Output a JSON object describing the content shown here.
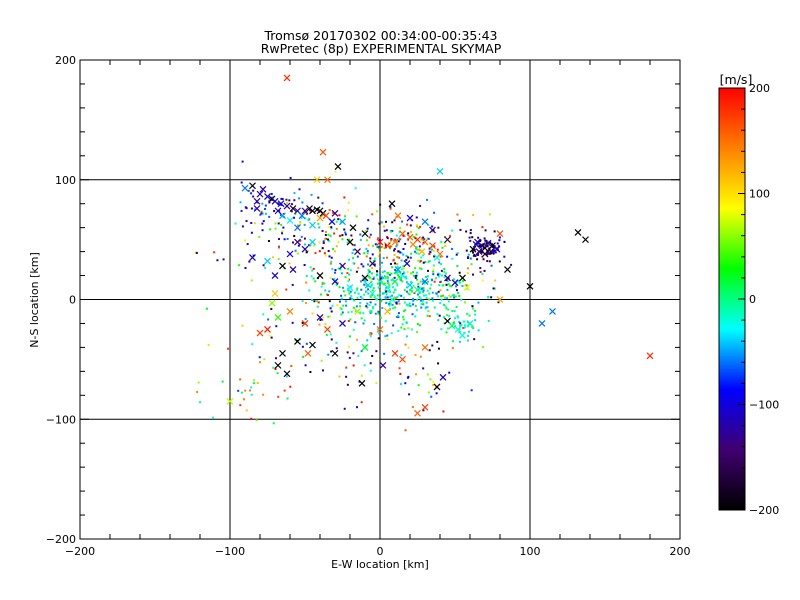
{
  "chart_data": {
    "type": "scatter",
    "title": "Tromsø 20170302 00:34:00-00:35:43",
    "subtitle": "RwPretec (8p) EXPERIMENTAL SKYMAP",
    "xlabel": "E-W location [km]",
    "ylabel": "N-S location [km]",
    "xlim": [
      -200,
      200
    ],
    "ylim": [
      -200,
      200
    ],
    "x_ticks": [
      -200,
      -100,
      0,
      100,
      200
    ],
    "y_ticks": [
      -200,
      -100,
      0,
      100,
      200
    ],
    "x_tick_labels": [
      "−200",
      "−100",
      "0",
      "100",
      "200"
    ],
    "y_tick_labels": [
      "−200",
      "−100",
      "0",
      "100",
      "200"
    ],
    "grid_lines_at": [
      -100,
      0,
      100
    ],
    "colorbar": {
      "unit": "[m/s]",
      "range": [
        -200,
        200
      ],
      "ticks": [
        -200,
        -100,
        0,
        100,
        200
      ],
      "tick_labels": [
        "−200",
        "−100",
        "0",
        "100",
        "200"
      ],
      "colormap": [
        "#000000",
        "#400070",
        "#0000ff",
        "#00ffff",
        "#00ff00",
        "#ffff00",
        "#ff8000",
        "#ff0000"
      ]
    },
    "points": [
      {
        "x": -62,
        "y": 185,
        "v": 180,
        "m": "x"
      },
      {
        "x": -38,
        "y": 123,
        "v": 160,
        "m": "x"
      },
      {
        "x": -28,
        "y": 111,
        "v": -200,
        "m": "x"
      },
      {
        "x": -35,
        "y": 100,
        "v": 150,
        "m": "x"
      },
      {
        "x": -42,
        "y": 100,
        "v": 110,
        "m": "x"
      },
      {
        "x": 40,
        "y": 107,
        "v": -40,
        "m": "x"
      },
      {
        "x": -85,
        "y": 95,
        "v": -190,
        "m": "x"
      },
      {
        "x": -90,
        "y": 93,
        "v": -60,
        "m": "x"
      },
      {
        "x": -78,
        "y": 92,
        "v": -120,
        "m": "x"
      },
      {
        "x": -80,
        "y": 88,
        "v": -120,
        "m": "x"
      },
      {
        "x": -75,
        "y": 86,
        "v": -110,
        "m": "x"
      },
      {
        "x": -72,
        "y": 84,
        "v": -190,
        "m": "x"
      },
      {
        "x": -70,
        "y": 82,
        "v": -120,
        "m": "x"
      },
      {
        "x": -82,
        "y": 82,
        "v": -130,
        "m": "x"
      },
      {
        "x": -66,
        "y": 80,
        "v": -100,
        "m": "x"
      },
      {
        "x": -62,
        "y": 78,
        "v": -130,
        "m": "x"
      },
      {
        "x": -58,
        "y": 76,
        "v": -190,
        "m": "x"
      },
      {
        "x": -55,
        "y": 74,
        "v": -120,
        "m": "x"
      },
      {
        "x": -50,
        "y": 74,
        "v": -140,
        "m": "x"
      },
      {
        "x": -47,
        "y": 76,
        "v": -190,
        "m": "x"
      },
      {
        "x": -45,
        "y": 74,
        "v": -200,
        "m": "x"
      },
      {
        "x": -42,
        "y": 75,
        "v": -190,
        "m": "x"
      },
      {
        "x": -40,
        "y": 74,
        "v": -200,
        "m": "x"
      },
      {
        "x": -38,
        "y": 72,
        "v": -200,
        "m": "x"
      },
      {
        "x": -36,
        "y": 70,
        "v": 170,
        "m": "x"
      },
      {
        "x": -40,
        "y": 68,
        "v": 130,
        "m": "x"
      },
      {
        "x": -30,
        "y": 72,
        "v": -130,
        "m": "x"
      },
      {
        "x": -25,
        "y": 65,
        "v": -50,
        "m": "x"
      },
      {
        "x": -32,
        "y": 65,
        "v": -90,
        "m": "x"
      },
      {
        "x": -45,
        "y": 62,
        "v": -40,
        "m": "x"
      },
      {
        "x": -52,
        "y": 70,
        "v": -60,
        "m": "x"
      },
      {
        "x": -60,
        "y": 66,
        "v": -30,
        "m": "x"
      },
      {
        "x": -65,
        "y": 70,
        "v": -50,
        "m": "x"
      },
      {
        "x": -68,
        "y": 74,
        "v": -120,
        "m": "x"
      },
      {
        "x": -82,
        "y": 76,
        "v": -120,
        "m": "x"
      },
      {
        "x": -55,
        "y": 60,
        "v": -60,
        "m": "x"
      },
      {
        "x": -18,
        "y": 60,
        "v": -200,
        "m": "x"
      },
      {
        "x": -10,
        "y": 55,
        "v": -200,
        "m": "x"
      },
      {
        "x": -20,
        "y": 48,
        "v": -200,
        "m": "x"
      },
      {
        "x": -15,
        "y": 40,
        "v": -150,
        "m": "x"
      },
      {
        "x": -5,
        "y": 30,
        "v": -160,
        "m": "x"
      },
      {
        "x": 8,
        "y": 80,
        "v": -200,
        "m": "x"
      },
      {
        "x": 12,
        "y": 70,
        "v": 150,
        "m": "x"
      },
      {
        "x": 20,
        "y": 68,
        "v": -100,
        "m": "x"
      },
      {
        "x": 15,
        "y": 55,
        "v": 160,
        "m": "x"
      },
      {
        "x": 20,
        "y": 52,
        "v": 160,
        "m": "x"
      },
      {
        "x": 25,
        "y": 50,
        "v": 180,
        "m": "x"
      },
      {
        "x": 30,
        "y": 48,
        "v": 150,
        "m": "x"
      },
      {
        "x": 35,
        "y": 45,
        "v": 170,
        "m": "x"
      },
      {
        "x": 22,
        "y": 46,
        "v": 140,
        "m": "x"
      },
      {
        "x": 10,
        "y": 48,
        "v": 140,
        "m": "x"
      },
      {
        "x": 5,
        "y": 45,
        "v": 180,
        "m": "x"
      },
      {
        "x": 0,
        "y": 48,
        "v": 190,
        "m": "x"
      },
      {
        "x": 28,
        "y": 40,
        "v": 120,
        "m": "x"
      },
      {
        "x": 40,
        "y": 38,
        "v": 150,
        "m": "x"
      },
      {
        "x": 45,
        "y": 50,
        "v": -150,
        "m": "x"
      },
      {
        "x": 30,
        "y": 65,
        "v": -60,
        "m": "x"
      },
      {
        "x": 35,
        "y": 58,
        "v": -120,
        "m": "x"
      },
      {
        "x": 38,
        "y": 35,
        "v": -20,
        "m": "x"
      },
      {
        "x": 65,
        "y": 48,
        "v": -110,
        "m": "x"
      },
      {
        "x": 68,
        "y": 45,
        "v": -130,
        "m": "x"
      },
      {
        "x": 70,
        "y": 43,
        "v": -190,
        "m": "x"
      },
      {
        "x": 72,
        "y": 47,
        "v": -120,
        "m": "x"
      },
      {
        "x": 75,
        "y": 45,
        "v": -200,
        "m": "x"
      },
      {
        "x": 66,
        "y": 40,
        "v": -150,
        "m": "x"
      },
      {
        "x": 70,
        "y": 38,
        "v": -190,
        "m": "x"
      },
      {
        "x": 74,
        "y": 40,
        "v": -160,
        "m": "x"
      },
      {
        "x": 78,
        "y": 42,
        "v": -120,
        "m": "x"
      },
      {
        "x": 62,
        "y": 42,
        "v": -200,
        "m": "x"
      },
      {
        "x": 64,
        "y": 46,
        "v": -110,
        "m": "x"
      },
      {
        "x": 80,
        "y": 55,
        "v": 170,
        "m": "x"
      },
      {
        "x": 85,
        "y": 25,
        "v": -200,
        "m": "x"
      },
      {
        "x": 55,
        "y": 18,
        "v": -200,
        "m": "x"
      },
      {
        "x": 50,
        "y": 14,
        "v": -110,
        "m": "x"
      },
      {
        "x": 58,
        "y": 10,
        "v": 80,
        "m": "x"
      },
      {
        "x": 45,
        "y": 18,
        "v": -130,
        "m": "x"
      },
      {
        "x": 100,
        "y": 11,
        "v": -200,
        "m": "x"
      },
      {
        "x": 132,
        "y": 56,
        "v": -200,
        "m": "x"
      },
      {
        "x": 137,
        "y": 50,
        "v": -200,
        "m": "x"
      },
      {
        "x": 115,
        "y": -10,
        "v": -60,
        "m": "x"
      },
      {
        "x": 108,
        "y": -20,
        "v": -60,
        "m": "x"
      },
      {
        "x": 180,
        "y": -47,
        "v": 180,
        "m": "x"
      },
      {
        "x": 80,
        "y": 0,
        "v": 130,
        "m": "x"
      },
      {
        "x": -85,
        "y": 35,
        "v": -110,
        "m": "x"
      },
      {
        "x": -75,
        "y": 32,
        "v": -40,
        "m": "x"
      },
      {
        "x": -60,
        "y": 38,
        "v": -110,
        "m": "x"
      },
      {
        "x": -50,
        "y": 42,
        "v": -120,
        "m": "x"
      },
      {
        "x": -55,
        "y": 48,
        "v": -130,
        "m": "x"
      },
      {
        "x": -45,
        "y": 48,
        "v": -40,
        "m": "x"
      },
      {
        "x": -65,
        "y": 28,
        "v": -200,
        "m": "x"
      },
      {
        "x": -70,
        "y": 20,
        "v": -100,
        "m": "x"
      },
      {
        "x": -58,
        "y": 25,
        "v": -120,
        "m": "x"
      },
      {
        "x": -40,
        "y": 20,
        "v": -200,
        "m": "x"
      },
      {
        "x": -30,
        "y": 15,
        "v": -100,
        "m": "x"
      },
      {
        "x": -20,
        "y": 10,
        "v": -30,
        "m": "x"
      },
      {
        "x": -10,
        "y": 18,
        "v": -200,
        "m": "x"
      },
      {
        "x": -70,
        "y": 5,
        "v": 110,
        "m": "x"
      },
      {
        "x": -72,
        "y": -3,
        "v": 60,
        "m": "x"
      },
      {
        "x": -68,
        "y": -15,
        "v": 40,
        "m": "x"
      },
      {
        "x": -60,
        "y": -10,
        "v": 140,
        "m": "x"
      },
      {
        "x": -50,
        "y": -20,
        "v": 180,
        "m": "x"
      },
      {
        "x": -40,
        "y": -15,
        "v": -120,
        "m": "x"
      },
      {
        "x": -35,
        "y": -25,
        "v": 170,
        "m": "x"
      },
      {
        "x": -25,
        "y": -20,
        "v": -110,
        "m": "x"
      },
      {
        "x": -15,
        "y": -10,
        "v": 60,
        "m": "x"
      },
      {
        "x": -75,
        "y": -25,
        "v": 190,
        "m": "x"
      },
      {
        "x": -80,
        "y": -28,
        "v": 170,
        "m": "x"
      },
      {
        "x": -55,
        "y": -35,
        "v": -200,
        "m": "x"
      },
      {
        "x": -48,
        "y": -45,
        "v": 160,
        "m": "x"
      },
      {
        "x": -45,
        "y": -38,
        "v": -200,
        "m": "x"
      },
      {
        "x": -65,
        "y": -45,
        "v": -200,
        "m": "x"
      },
      {
        "x": -68,
        "y": -55,
        "v": -200,
        "m": "x"
      },
      {
        "x": -62,
        "y": -62,
        "v": -200,
        "m": "x"
      },
      {
        "x": -30,
        "y": -45,
        "v": -200,
        "m": "x"
      },
      {
        "x": -10,
        "y": -40,
        "v": 20,
        "m": "x"
      },
      {
        "x": 2,
        "y": -55,
        "v": -120,
        "m": "x"
      },
      {
        "x": 10,
        "y": -45,
        "v": 180,
        "m": "x"
      },
      {
        "x": 15,
        "y": -50,
        "v": 170,
        "m": "x"
      },
      {
        "x": 30,
        "y": -40,
        "v": 150,
        "m": "x"
      },
      {
        "x": 38,
        "y": -73,
        "v": -200,
        "m": "x"
      },
      {
        "x": 42,
        "y": -65,
        "v": -110,
        "m": "x"
      },
      {
        "x": 45,
        "y": -18,
        "v": -200,
        "m": "x"
      },
      {
        "x": 48,
        "y": -22,
        "v": 10,
        "m": "x"
      },
      {
        "x": 52,
        "y": -25,
        "v": -20,
        "m": "x"
      },
      {
        "x": 55,
        "y": -30,
        "v": -20,
        "m": "x"
      },
      {
        "x": 60,
        "y": -20,
        "v": -10,
        "m": "x"
      },
      {
        "x": -12,
        "y": -70,
        "v": -200,
        "m": "x"
      },
      {
        "x": 30,
        "y": -90,
        "v": 170,
        "m": "x"
      },
      {
        "x": 25,
        "y": -95,
        "v": 160,
        "m": "x"
      },
      {
        "x": -100,
        "y": -85,
        "v": 70,
        "m": "x"
      },
      {
        "x": 0,
        "y": -25,
        "v": 150,
        "m": "x"
      },
      {
        "x": 5,
        "y": -10,
        "v": 120,
        "m": "x"
      },
      {
        "x": -5,
        "y": 5,
        "v": -20,
        "m": "x"
      },
      {
        "x": 0,
        "y": 15,
        "v": -10,
        "m": "x"
      },
      {
        "x": 5,
        "y": 10,
        "v": -20,
        "m": "x"
      },
      {
        "x": 10,
        "y": 15,
        "v": 10,
        "m": "x"
      },
      {
        "x": 15,
        "y": 20,
        "v": -30,
        "m": "x"
      },
      {
        "x": 20,
        "y": 12,
        "v": -40,
        "m": "x"
      },
      {
        "x": 25,
        "y": 8,
        "v": 0,
        "m": "x"
      },
      {
        "x": 30,
        "y": 15,
        "v": -60,
        "m": "x"
      },
      {
        "x": 8,
        "y": 0,
        "v": -20,
        "m": "x"
      },
      {
        "x": -8,
        "y": 12,
        "v": -40,
        "m": "x"
      },
      {
        "x": 12,
        "y": 25,
        "v": -50,
        "m": "x"
      },
      {
        "x": 18,
        "y": 30,
        "v": -100,
        "m": "x"
      },
      {
        "x": -25,
        "y": 28,
        "v": -120,
        "m": "x"
      }
    ],
    "dot_clusters": [
      {
        "cx": 0,
        "cy": 8,
        "sx": 22,
        "sy": 16,
        "n": 300,
        "vmin": -70,
        "vmax": 40
      },
      {
        "cx": 30,
        "cy": 5,
        "sx": 15,
        "sy": 10,
        "n": 90,
        "vmin": -60,
        "vmax": 50
      },
      {
        "cx": -40,
        "cy": 50,
        "sx": 40,
        "sy": 18,
        "n": 170,
        "vmin": -200,
        "vmax": 200
      },
      {
        "cx": 15,
        "cy": 45,
        "sx": 25,
        "sy": 15,
        "n": 150,
        "vmin": -200,
        "vmax": 200
      },
      {
        "cx": -70,
        "cy": 80,
        "sx": 14,
        "sy": 10,
        "n": 60,
        "vmin": -150,
        "vmax": -40
      },
      {
        "cx": 70,
        "cy": 42,
        "sx": 6,
        "sy": 6,
        "n": 80,
        "vmin": -200,
        "vmax": -90
      },
      {
        "cx": 55,
        "cy": -20,
        "sx": 7,
        "sy": 7,
        "n": 40,
        "vmin": -40,
        "vmax": 20
      },
      {
        "cx": -20,
        "cy": -30,
        "sx": 40,
        "sy": 25,
        "n": 110,
        "vmin": -200,
        "vmax": 200
      },
      {
        "cx": -85,
        "cy": -70,
        "sx": 14,
        "sy": 12,
        "n": 30,
        "vmin": -80,
        "vmax": 200
      },
      {
        "cx": 25,
        "cy": -60,
        "sx": 20,
        "sy": 22,
        "n": 40,
        "vmin": -200,
        "vmax": 200
      },
      {
        "cx": 40,
        "cy": 20,
        "sx": 25,
        "sy": 15,
        "n": 70,
        "vmin": -200,
        "vmax": 200
      }
    ]
  }
}
